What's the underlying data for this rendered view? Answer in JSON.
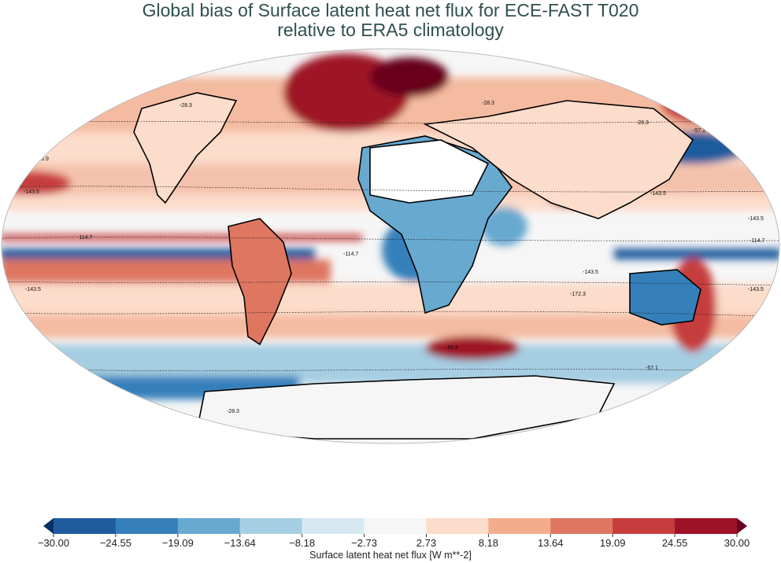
{
  "title": {
    "line1": "Global bias of Surface latent heat net flux for ECE-FAST T020",
    "line2": "relative to ERA5 climatology"
  },
  "colorbar": {
    "label": "Surface latent heat net flux [W m**-2]",
    "ticks": [
      "−30.00",
      "−24.55",
      "−19.09",
      "−13.64",
      "−8.18",
      "−2.73",
      "2.73",
      "8.18",
      "13.64",
      "19.09",
      "24.55",
      "30.00"
    ],
    "colors": [
      "#1f5b9e",
      "#3580bb",
      "#68a9d0",
      "#a6cee3",
      "#d8e8f1",
      "#f6f6f6",
      "#fcdcca",
      "#f4ad8c",
      "#df7660",
      "#c63c3d",
      "#9e1228"
    ],
    "under_color": "#053061",
    "over_color": "#67001f",
    "range": [
      -30,
      30
    ]
  },
  "contour_labels": [
    "-28.3",
    "-28.3",
    "-28.3",
    "-57.1",
    "-57.1",
    "-85.9",
    "-143.5",
    "-114.7",
    "-143.5",
    "-114.7",
    "-143.5",
    "-172.3",
    "-143.5",
    "-114.7",
    "-143.5",
    "-143.5",
    "-85.9",
    "-57.1",
    "-28.3",
    "-28.3"
  ]
}
